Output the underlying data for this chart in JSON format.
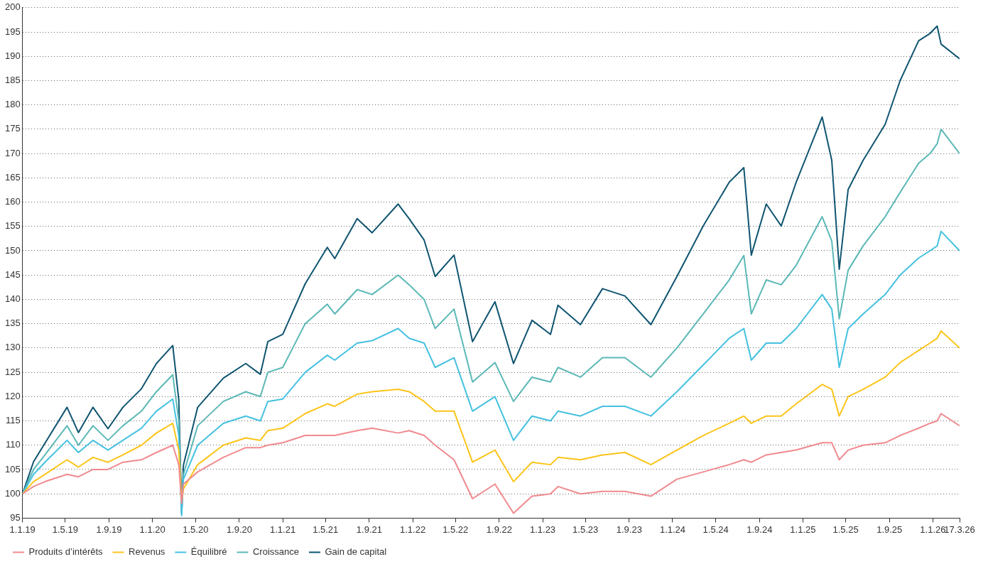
{
  "chart_data": {
    "type": "line",
    "x": [
      "2019-01-01",
      "2019-02-01",
      "2019-03-05",
      "2019-05-06",
      "2019-06-07",
      "2019-07-18",
      "2019-08-29",
      "2019-10-10",
      "2019-12-01",
      "2020-01-12",
      "2020-02-27",
      "2020-03-15",
      "2020-03-23",
      "2020-03-28",
      "2020-05-07",
      "2020-07-18",
      "2020-09-19",
      "2020-10-30",
      "2020-11-20",
      "2021-01-01",
      "2021-03-05",
      "2021-05-06",
      "2021-05-27",
      "2021-07-29",
      "2021-09-09",
      "2021-11-21",
      "2021-12-22",
      "2022-02-02",
      "2022-03-05",
      "2022-04-27",
      "2022-06-18",
      "2022-08-20",
      "2022-10-11",
      "2022-12-02",
      "2023-01-23",
      "2023-02-13",
      "2023-04-17",
      "2023-06-18",
      "2023-08-20",
      "2023-11-01",
      "2024-01-13",
      "2024-03-27",
      "2024-06-08",
      "2024-07-19",
      "2024-08-09",
      "2024-09-20",
      "2024-11-01",
      "2024-12-13",
      "2025-02-24",
      "2025-03-23",
      "2025-04-13",
      "2025-05-08",
      "2025-06-19",
      "2025-08-20",
      "2025-10-01",
      "2025-11-22",
      "2025-12-24",
      "2026-01-13",
      "2026-01-24",
      "2026-03-17"
    ],
    "series": [
      {
        "name": "Produits d’intérêts",
        "color": "#f08a8f",
        "values": [
          100,
          101.5,
          102.5,
          104,
          103.5,
          105,
          105,
          106.5,
          107,
          108.5,
          110,
          106,
          98,
          102,
          104.5,
          107.5,
          109.5,
          109.5,
          110,
          110.5,
          112,
          112,
          112,
          113,
          113.5,
          112.5,
          113,
          112,
          110,
          107,
          99,
          102,
          96,
          99.5,
          100,
          101.5,
          100,
          100.5,
          100.5,
          99.5,
          103,
          104.5,
          106,
          107,
          106.5,
          108,
          108.5,
          109,
          110.5,
          110.5,
          107,
          109,
          110,
          110.5,
          112,
          113.5,
          114.5,
          115,
          116.5,
          114
        ]
      },
      {
        "name": "Revenus",
        "color": "#fcc419",
        "values": [
          100,
          102.5,
          104,
          107,
          105.5,
          107.5,
          106.5,
          108,
          110,
          112.5,
          114.5,
          109,
          98.5,
          101,
          106,
          110,
          111.5,
          111,
          113,
          113.5,
          116.5,
          118.5,
          118,
          120.5,
          121,
          121.5,
          121,
          119,
          117,
          117,
          106.5,
          109,
          102.5,
          106.5,
          106,
          107.5,
          107,
          108,
          108.5,
          106,
          109,
          112,
          114.5,
          116,
          114.5,
          116,
          116,
          118.5,
          122.5,
          121.5,
          116,
          120,
          121.5,
          124,
          127,
          129.5,
          131,
          132,
          133.5,
          130
        ]
      },
      {
        "name": "Équilibré",
        "color": "#45c1e0",
        "values": [
          100,
          104,
          106.5,
          111,
          108.5,
          111,
          109,
          111,
          113.5,
          117,
          119.5,
          112,
          95.5,
          103,
          110,
          114.5,
          116,
          115,
          119,
          119.5,
          125,
          128.5,
          127.5,
          131,
          131.5,
          134,
          132,
          131,
          126,
          128,
          117,
          120,
          111,
          116,
          115,
          117,
          116,
          118,
          118,
          116,
          121,
          126.5,
          132,
          134,
          127.5,
          131,
          131,
          134,
          141,
          138,
          126,
          134,
          137,
          141,
          145,
          148.5,
          150,
          151,
          154,
          150
        ]
      },
      {
        "name": "Croissance",
        "color": "#5bb8b6",
        "values": [
          100,
          105,
          108,
          114,
          110,
          114,
          111,
          114,
          117,
          121,
          124.5,
          115,
          96,
          104,
          114,
          119,
          121,
          120,
          125,
          126,
          135,
          139,
          137,
          142,
          141,
          145,
          143,
          140,
          134,
          138,
          123,
          127,
          119,
          124,
          123,
          126,
          124,
          128,
          128,
          124,
          130,
          137,
          144,
          149,
          137,
          144,
          143,
          147,
          157,
          152,
          136,
          146,
          151,
          157,
          162,
          168,
          170,
          172,
          175,
          170
        ]
      },
      {
        "name": "Gain de capital",
        "color": "#0f5470",
        "values": [
          100,
          106.6,
          110.4,
          117.8,
          112.6,
          117.8,
          113.4,
          117.8,
          121.6,
          126.8,
          130.5,
          119.3,
          96,
          105.9,
          117.8,
          123.8,
          126.8,
          124.6,
          131.3,
          132.8,
          143.2,
          150.7,
          148.4,
          156.6,
          153.7,
          159.6,
          156.6,
          152.2,
          144.7,
          149.1,
          131.3,
          139.5,
          126.8,
          135.7,
          132.8,
          138.8,
          134.8,
          142.2,
          140.7,
          134.8,
          144.7,
          155.1,
          164.1,
          167.1,
          149.1,
          159.6,
          155.1,
          164.1,
          177.5,
          168.6,
          146.2,
          162.6,
          168.6,
          176,
          185,
          193.2,
          194.7,
          196.2,
          192.5,
          189.5
        ]
      }
    ],
    "xlim": [
      "2019-01-01",
      "2026-03-17"
    ],
    "xticks": [
      {
        "value": "2019-01-01",
        "label": "1.1.19"
      },
      {
        "value": "2019-05-01",
        "label": "1.5.19"
      },
      {
        "value": "2019-09-01",
        "label": "1.9.19"
      },
      {
        "value": "2020-01-01",
        "label": "1.1.20"
      },
      {
        "value": "2020-05-01",
        "label": "1.5.20"
      },
      {
        "value": "2020-09-01",
        "label": "1.9.20"
      },
      {
        "value": "2021-01-01",
        "label": "1.1.21"
      },
      {
        "value": "2021-05-01",
        "label": "1.5.21"
      },
      {
        "value": "2021-09-01",
        "label": "1.9.21"
      },
      {
        "value": "2022-01-01",
        "label": "1.1.22"
      },
      {
        "value": "2022-05-01",
        "label": "1.5.22"
      },
      {
        "value": "2022-09-01",
        "label": "1.9.22"
      },
      {
        "value": "2023-01-01",
        "label": "1.1.23"
      },
      {
        "value": "2023-05-01",
        "label": "1.5.23"
      },
      {
        "value": "2023-09-01",
        "label": "1.9.23"
      },
      {
        "value": "2024-01-01",
        "label": "1.1.24"
      },
      {
        "value": "2024-05-01",
        "label": "1.5.24"
      },
      {
        "value": "2024-09-01",
        "label": "1.9.24"
      },
      {
        "value": "2025-01-01",
        "label": "1.1.25"
      },
      {
        "value": "2025-05-01",
        "label": "1.5.25"
      },
      {
        "value": "2025-09-01",
        "label": "1.9.25"
      },
      {
        "value": "2026-01-01",
        "label": "1.1.26"
      },
      {
        "value": "2026-03-17",
        "label": "17.3.26"
      }
    ],
    "ylim": [
      95,
      200
    ],
    "yticks": [
      95,
      100,
      105,
      110,
      115,
      120,
      125,
      130,
      135,
      140,
      145,
      150,
      155,
      160,
      165,
      170,
      175,
      180,
      185,
      190,
      195,
      200
    ],
    "grid": "y",
    "legend": "bottom left"
  }
}
